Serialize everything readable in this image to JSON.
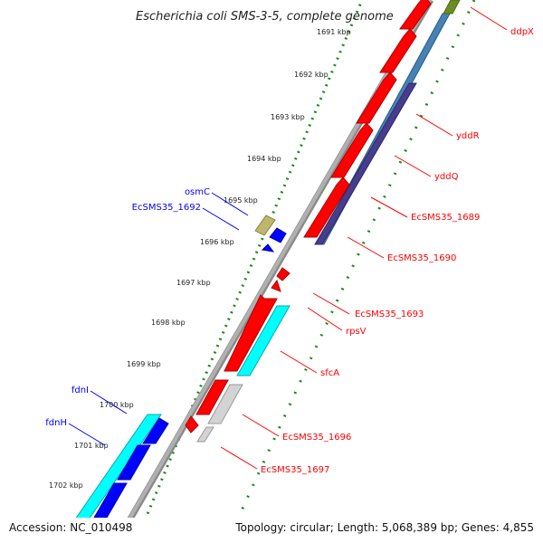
{
  "title": "Escherichia coli SMS-3-5, complete genome",
  "footer": {
    "accession": "Accession: NC_010498",
    "stats": "Topology: circular; Length: 5,068,389 bp; Genes: 4,855"
  },
  "colors": {
    "red": "#ff0000",
    "blue": "#0000ff",
    "cyan": "#00ffff",
    "steel": "#4682b4",
    "slate": "#483d8b",
    "olive": "#6b8e23",
    "khaki": "#bdb76b",
    "gray": "#d3d3d3",
    "tick": "#1a8a1a"
  },
  "ruler": {
    "ticks": [
      {
        "label": "1691 kbp"
      },
      {
        "label": "1692 kbp"
      },
      {
        "label": "1693 kbp"
      },
      {
        "label": "1694 kbp"
      },
      {
        "label": "1695 kbp"
      },
      {
        "label": "1696 kbp"
      },
      {
        "label": "1697 kbp"
      },
      {
        "label": "1698 kbp"
      },
      {
        "label": "1699 kbp"
      },
      {
        "label": "1700 kbp"
      },
      {
        "label": "1701 kbp"
      },
      {
        "label": "1702 kbp"
      }
    ]
  },
  "labels_left": [
    {
      "text": "osmC"
    },
    {
      "text": "EcSMS35_1692"
    },
    {
      "text": "fdnI"
    },
    {
      "text": "fdnH"
    }
  ],
  "labels_right": [
    {
      "text": "ddpX"
    },
    {
      "text": "yddR"
    },
    {
      "text": "yddQ"
    },
    {
      "text": "EcSMS35_1689"
    },
    {
      "text": "EcSMS35_1690"
    },
    {
      "text": "EcSMS35_1693"
    },
    {
      "text": "rpsV"
    },
    {
      "text": "sfcA"
    },
    {
      "text": "EcSMS35_1696"
    },
    {
      "text": "EcSMS35_1697"
    }
  ]
}
